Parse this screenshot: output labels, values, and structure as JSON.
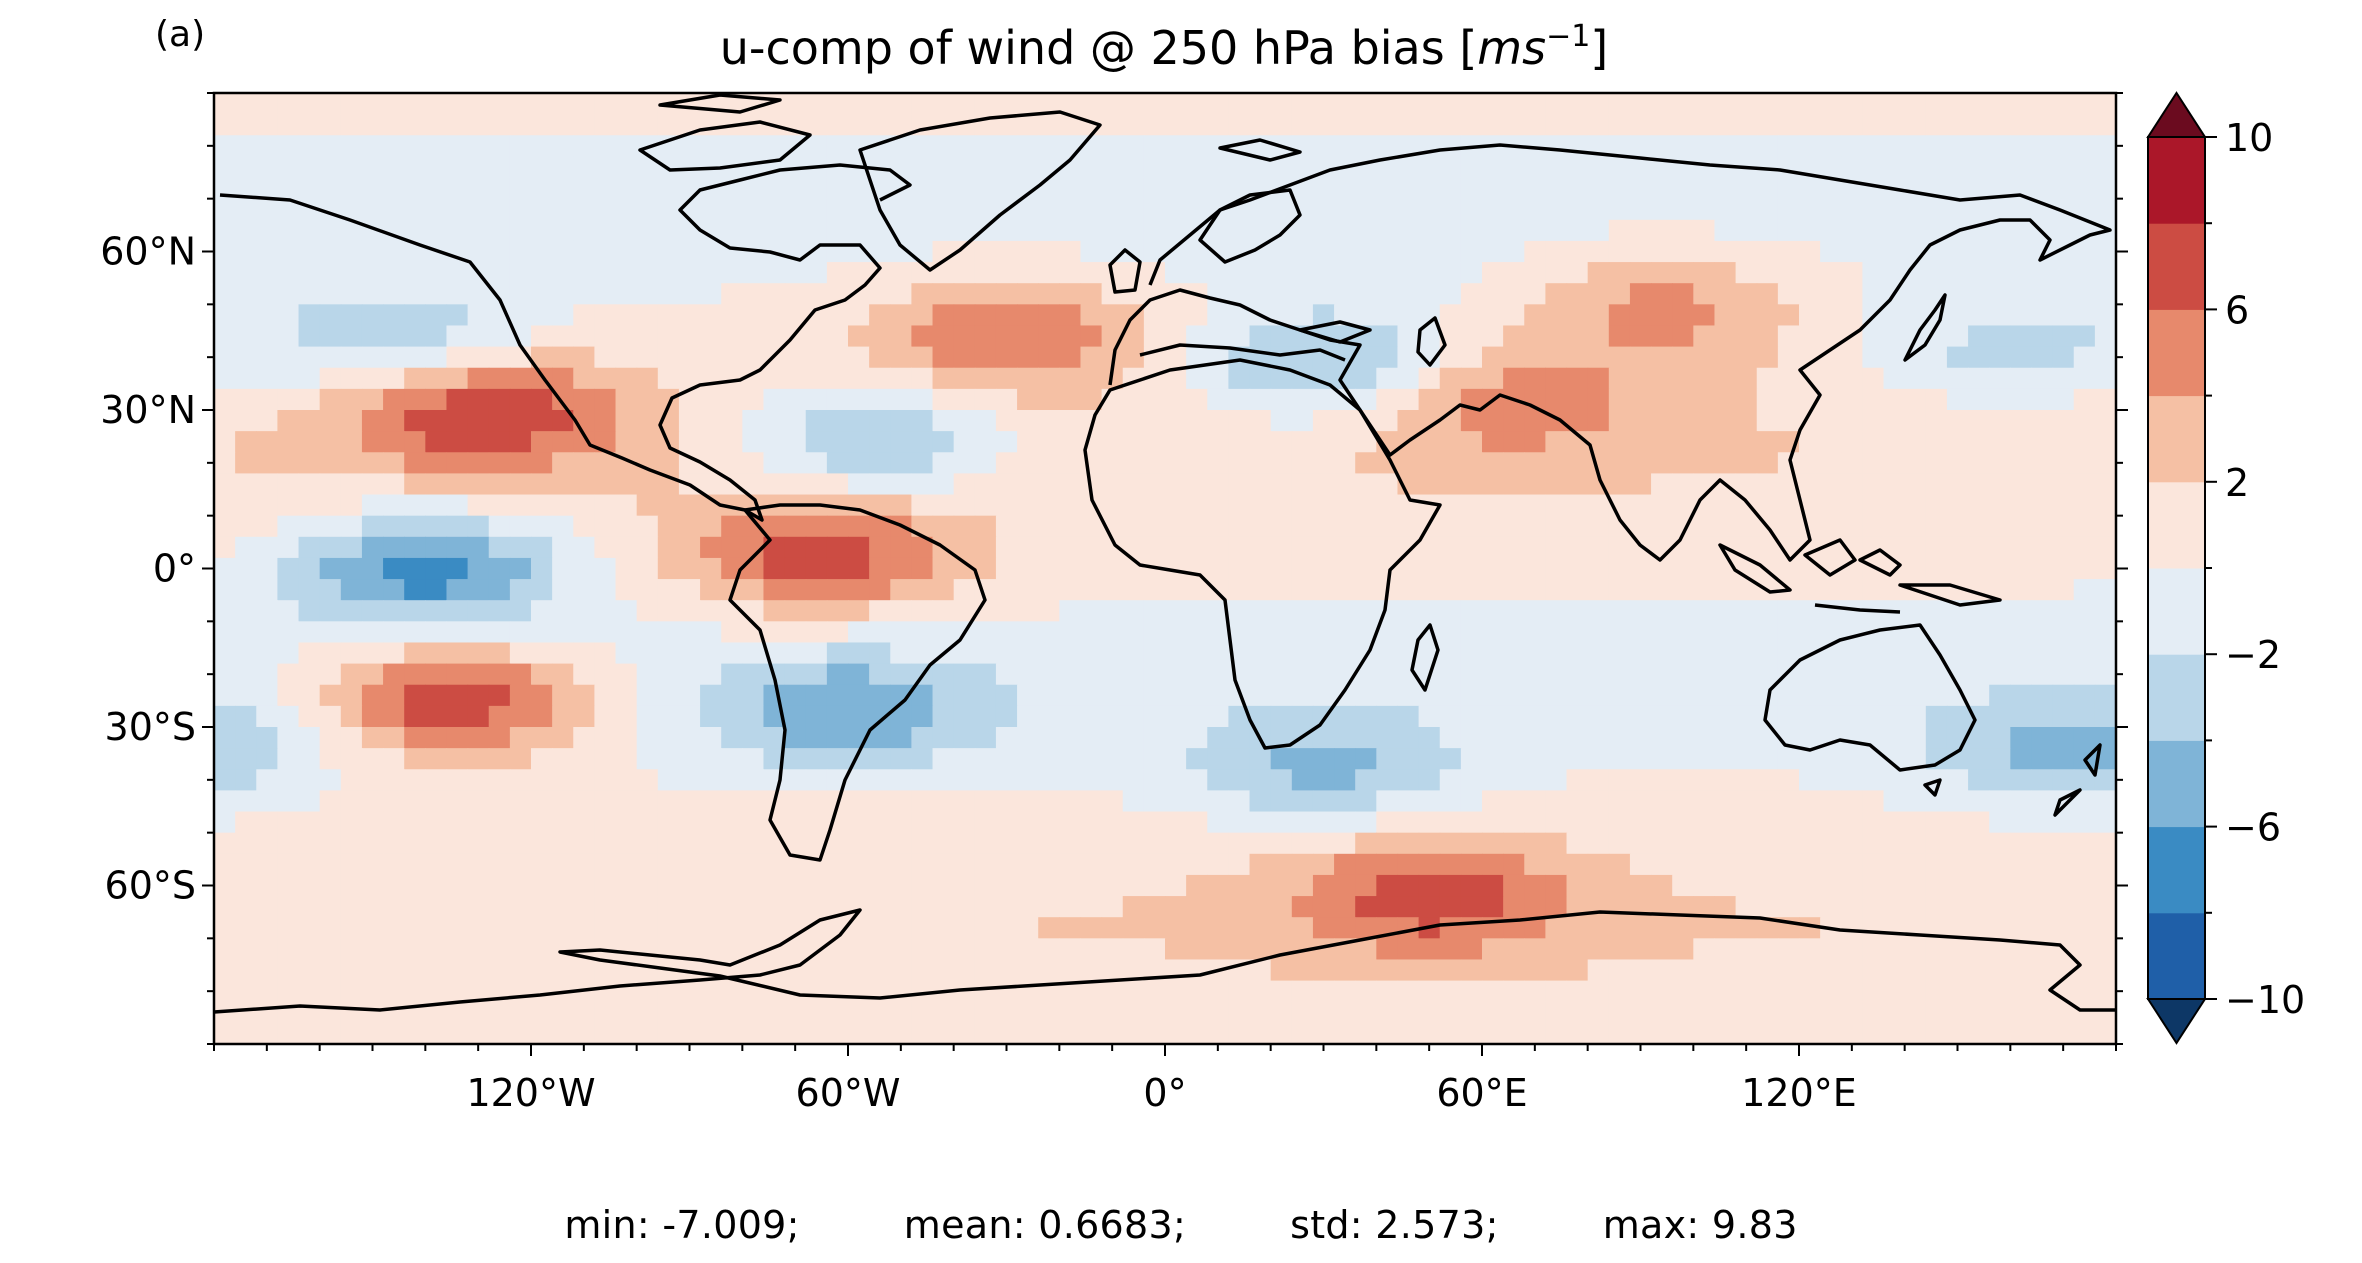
{
  "panel_label": "(a)",
  "title": "u-comp of wind @ 250 hPa bias [",
  "title_unit_base": "ms",
  "title_unit_exp": "−1",
  "title_close": "]",
  "chart_data": {
    "type": "heatmap",
    "projection": "PlateCarree",
    "extent": {
      "lon": [
        -180,
        180
      ],
      "lat": [
        -90,
        90
      ]
    },
    "xticks": [
      {
        "lon": -120,
        "label": "120°W"
      },
      {
        "lon": -60,
        "label": "60°W"
      },
      {
        "lon": 0,
        "label": "0°"
      },
      {
        "lon": 60,
        "label": "60°E"
      },
      {
        "lon": 120,
        "label": "120°E"
      }
    ],
    "yticks": [
      {
        "lat": 60,
        "label": "60°N"
      },
      {
        "lat": 30,
        "label": "30°N"
      },
      {
        "lat": 0,
        "label": "0°"
      },
      {
        "lat": -30,
        "label": "30°S"
      },
      {
        "lat": -60,
        "label": "60°S"
      }
    ],
    "colorbar": {
      "levels": [
        -10,
        -8,
        -6,
        -4,
        -2,
        0,
        2,
        4,
        6,
        8,
        10
      ],
      "colors": [
        "#1f5fa8",
        "#3a8bc3",
        "#7fb4d7",
        "#b9d6e9",
        "#e4edf5",
        "#fbe6dc",
        "#f5c0a4",
        "#e7896c",
        "#cc4c43",
        "#ab1729"
      ],
      "extend_under": "#0d3766",
      "extend_over": "#6b0b1f",
      "tick_values": [
        10,
        6,
        2,
        -2,
        -6,
        -10
      ],
      "tick_labels": [
        "10",
        "6",
        "2",
        "−2",
        "−6",
        "−10"
      ]
    },
    "anomalies": [
      {
        "lon": -130,
        "lat": 30,
        "value": 7.5
      },
      {
        "lon": -135,
        "lat": -25,
        "value": 8.5
      },
      {
        "lon": -65,
        "lat": 2,
        "value": 7.0
      },
      {
        "lon": -30,
        "lat": 45,
        "value": 6.0
      },
      {
        "lon": 50,
        "lat": -62,
        "value": 6.0
      },
      {
        "lon": 95,
        "lat": 50,
        "value": 5.0
      },
      {
        "lon": 65,
        "lat": 32,
        "value": 4.5
      },
      {
        "lon": -140,
        "lat": 0,
        "value": -7.0
      },
      {
        "lon": -55,
        "lat": 24,
        "value": -5.0
      },
      {
        "lon": 30,
        "lat": 38,
        "value": -5.0
      },
      {
        "lon": -60,
        "lat": -27,
        "value": -4.5
      },
      {
        "lon": 30,
        "lat": -38,
        "value": -4.0
      },
      {
        "lon": -145,
        "lat": 42,
        "value": -4.0
      },
      {
        "lon": 170,
        "lat": -35,
        "value": -4.0
      },
      {
        "lon": 160,
        "lat": 40,
        "value": -3.0
      }
    ]
  },
  "stats": {
    "min": "min: -7.009;",
    "mean": "mean: 0.6683;",
    "std": "std: 2.573;",
    "max": "max: 9.83"
  }
}
